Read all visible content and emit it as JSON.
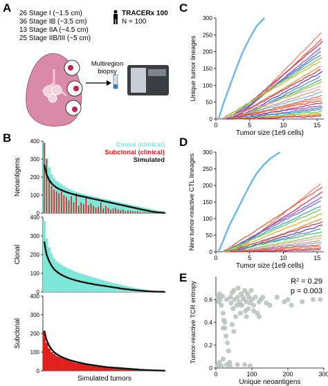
{
  "panel_a": {
    "letter": "A",
    "stages": [
      "26 Stage I (~1.5 cm)",
      "36 Stage IB (~3.5 cm)",
      "13 Stage IIA (~4.5 cm)",
      "25 Stage IIB/III (~5 cm)"
    ],
    "cohort_title": "TRACERx 100",
    "cohort_n": "N = 100",
    "biopsy_label_1": "Multiregion",
    "biopsy_label_2": "biopsy"
  },
  "colors": {
    "clonal": "#7ee8d8",
    "subclonal": "#e0201c",
    "simulated": "#111111",
    "scatter": "#b7c1bc",
    "highlight_line": "#69b8e8"
  },
  "chart_data": [
    {
      "panel": "B",
      "type": "bar",
      "ylabel": "Neoantigens",
      "ylim": [
        0,
        400
      ],
      "yticks": [
        0,
        100,
        200,
        300,
        400
      ],
      "legend": [
        "Clonal (clinical)",
        "Subclonal (clinical)",
        "Simulated"
      ],
      "legend_placement": "top-right",
      "series": [
        {
          "name": "Clonal (clinical)",
          "values": [
            395,
            305,
            255,
            215,
            195,
            180,
            170,
            160,
            150,
            142,
            135,
            128,
            122,
            118,
            114,
            110,
            106,
            102,
            98,
            95,
            92,
            89,
            86,
            83,
            80,
            77,
            74,
            71,
            68,
            65,
            62,
            59,
            56,
            53,
            50,
            47,
            44,
            41,
            38,
            35,
            32,
            29,
            26,
            23,
            20,
            17,
            14,
            11,
            8,
            5
          ]
        },
        {
          "name": "Subclonal (clinical)",
          "values": [
            390,
            300,
            180,
            150,
            130,
            120,
            110,
            120,
            100,
            90,
            70,
            95,
            60,
            110,
            40,
            60,
            50,
            90,
            45,
            55,
            40,
            30,
            35,
            60,
            25,
            40,
            30,
            20,
            25,
            30,
            20,
            15,
            20,
            10,
            15,
            12,
            10,
            8,
            10,
            6,
            5,
            6,
            4,
            3,
            3,
            2,
            2,
            1,
            1,
            1
          ]
        },
        {
          "name": "Simulated",
          "values": [
            270,
            215,
            185,
            165,
            152,
            142,
            134,
            128,
            122,
            117,
            112,
            108,
            104,
            100,
            97,
            94,
            91,
            88,
            85,
            82,
            79,
            76,
            73,
            70,
            67,
            64,
            61,
            58,
            55,
            52,
            49,
            46,
            43,
            40,
            37,
            34,
            31,
            28,
            25,
            22,
            19,
            16,
            13,
            10,
            8,
            6,
            4,
            3,
            2,
            1
          ]
        }
      ]
    },
    {
      "panel": "B",
      "type": "bar",
      "ylabel": "Clonal",
      "ylim": [
        0,
        400
      ],
      "yticks": [
        0,
        100,
        200,
        300,
        400
      ],
      "series": [
        {
          "name": "Clonal (clinical)",
          "values": [
            380,
            285,
            240,
            205,
            180,
            165,
            155,
            145,
            138,
            130,
            124,
            118,
            112,
            107,
            102,
            98,
            94,
            90,
            86,
            82,
            78,
            74,
            70,
            66,
            62,
            58,
            55,
            52,
            48,
            45,
            42,
            39,
            36,
            33,
            30,
            27,
            24,
            21,
            18,
            16,
            14,
            12,
            10,
            8,
            6,
            5,
            4,
            3,
            2,
            1
          ]
        },
        {
          "name": "Simulated",
          "values": [
            270,
            200,
            165,
            140,
            122,
            110,
            100,
            92,
            85,
            79,
            74,
            69,
            65,
            61,
            58,
            55,
            52,
            49,
            46,
            44,
            41,
            39,
            37,
            35,
            33,
            31,
            29,
            27,
            25,
            23,
            21,
            19,
            17,
            15,
            14,
            12,
            11,
            9,
            8,
            7,
            6,
            5,
            4,
            3,
            2,
            2,
            1,
            1,
            1,
            0
          ]
        }
      ]
    },
    {
      "panel": "B",
      "type": "bar",
      "ylabel": "Subclonal",
      "xlabel": "Simulated tumors",
      "ylim": [
        0,
        400
      ],
      "yticks": [
        0,
        100,
        200,
        300,
        400
      ],
      "series": [
        {
          "name": "Subclonal (clinical)",
          "values": [
            210,
            150,
            120,
            100,
            90,
            80,
            75,
            70,
            65,
            60,
            55,
            50,
            46,
            42,
            40,
            38,
            36,
            34,
            32,
            30,
            28,
            26,
            24,
            22,
            20,
            18,
            17,
            16,
            15,
            14,
            13,
            12,
            11,
            10,
            9,
            8,
            7,
            6,
            5,
            5,
            4,
            4,
            3,
            3,
            2,
            2,
            1,
            1,
            1,
            0
          ]
        },
        {
          "name": "Simulated",
          "values": [
            215,
            165,
            135,
            115,
            100,
            90,
            82,
            75,
            69,
            64,
            59,
            55,
            51,
            48,
            45,
            42,
            39,
            36,
            34,
            32,
            30,
            28,
            26,
            24,
            22,
            20,
            19,
            18,
            17,
            16,
            15,
            14,
            13,
            12,
            11,
            10,
            9,
            8,
            7,
            6,
            5,
            4,
            4,
            3,
            3,
            2,
            2,
            1,
            1,
            0
          ]
        }
      ]
    },
    {
      "panel": "C",
      "type": "line",
      "ylabel": "Unique tumor lineages",
      "xlabel": "Tumor size (1e9 cells)",
      "xlim": [
        0,
        16
      ],
      "ylim": [
        0,
        300
      ],
      "xticks": [
        0,
        5,
        10,
        15
      ],
      "yticks": [
        0,
        50,
        100,
        150,
        200,
        250,
        300
      ],
      "highlight": {
        "x": [
          0.4,
          1,
          2,
          3,
          4,
          5,
          6,
          7.2
        ],
        "y": [
          0,
          40,
          95,
          150,
          200,
          240,
          275,
          300
        ]
      },
      "endpoints": [
        260,
        240,
        230,
        215,
        205,
        195,
        185,
        175,
        160,
        150,
        140,
        130,
        120,
        110,
        100,
        90,
        80,
        70,
        62,
        55,
        48,
        40,
        34,
        28,
        22,
        16,
        12,
        8
      ]
    },
    {
      "panel": "D",
      "type": "line",
      "ylabel": "New tumor-reactive CTL lineages",
      "xlabel": "Tumor size (1e9 cells)",
      "xlim": [
        0,
        16
      ],
      "ylim": [
        0,
        300
      ],
      "xticks": [
        0,
        5,
        10,
        15
      ],
      "yticks": [
        0,
        50,
        100,
        150,
        200,
        250,
        300
      ],
      "highlight": {
        "x": [
          0.4,
          1,
          2,
          3,
          4,
          5,
          6,
          7,
          8,
          9.5
        ],
        "y": [
          0,
          30,
          80,
          120,
          160,
          200,
          235,
          260,
          280,
          300
        ]
      },
      "endpoints": [
        210,
        195,
        180,
        165,
        155,
        140,
        130,
        115,
        100,
        90,
        80,
        70,
        60,
        50,
        42,
        35,
        28,
        22,
        16,
        10,
        6
      ]
    },
    {
      "panel": "E",
      "type": "scatter",
      "ylabel": "Tumor-reactive TCR entropy",
      "xlabel": "Unique neoantigens",
      "xlim": [
        0,
        300
      ],
      "ylim": [
        0,
        0.8
      ],
      "xticks": [
        0,
        100,
        200,
        300
      ],
      "r2_label": "R",
      "r2_sup": "2",
      "r2_value": " = 0.29",
      "p_label": "p = 0.003",
      "points": [
        [
          5,
          0.62
        ],
        [
          8,
          0.58
        ],
        [
          10,
          0.65
        ],
        [
          12,
          0.6
        ],
        [
          15,
          0.55
        ],
        [
          18,
          0.63
        ],
        [
          20,
          0.48
        ],
        [
          22,
          0.42
        ],
        [
          25,
          0.35
        ],
        [
          28,
          0.28
        ],
        [
          30,
          0.6
        ],
        [
          32,
          0.22
        ],
        [
          35,
          0.15
        ],
        [
          38,
          0.05
        ],
        [
          40,
          0.62
        ],
        [
          42,
          0.57
        ],
        [
          45,
          0.66
        ],
        [
          48,
          0.52
        ],
        [
          50,
          0.68
        ],
        [
          52,
          0.6
        ],
        [
          55,
          0.45
        ],
        [
          58,
          0.55
        ],
        [
          60,
          0.62
        ],
        [
          62,
          0.7
        ],
        [
          65,
          0.58
        ],
        [
          68,
          0.48
        ],
        [
          70,
          0.65
        ],
        [
          72,
          0.55
        ],
        [
          75,
          0.62
        ],
        [
          78,
          0.6
        ],
        [
          80,
          0.68
        ],
        [
          82,
          0.5
        ],
        [
          85,
          0.58
        ],
        [
          88,
          0.65
        ],
        [
          90,
          0.52
        ],
        [
          92,
          0.62
        ],
        [
          95,
          0.57
        ],
        [
          98,
          0.68
        ],
        [
          100,
          0.6
        ],
        [
          105,
          0.55
        ],
        [
          110,
          0.62
        ],
        [
          115,
          0.48
        ],
        [
          120,
          0.58
        ],
        [
          125,
          0.6
        ],
        [
          130,
          0.62
        ],
        [
          140,
          0.57
        ],
        [
          150,
          0.55
        ],
        [
          170,
          0.62
        ],
        [
          190,
          0.58
        ],
        [
          200,
          0.6
        ],
        [
          210,
          0.55
        ],
        [
          240,
          0.58
        ],
        [
          270,
          0.6
        ],
        [
          290,
          0.6
        ],
        [
          5,
          0.02
        ],
        [
          10,
          0.05
        ],
        [
          15,
          0.02
        ],
        [
          20,
          0.08
        ],
        [
          30,
          0.03
        ],
        [
          40,
          0.02
        ],
        [
          60,
          0.03
        ],
        [
          80,
          0.03
        ],
        [
          95,
          0.02
        ],
        [
          20,
          0.35
        ],
        [
          25,
          0.4
        ],
        [
          45,
          0.38
        ],
        [
          50,
          0.32
        ],
        [
          70,
          0.55
        ],
        [
          85,
          0.45
        ],
        [
          105,
          0.5
        ],
        [
          120,
          0.45
        ]
      ]
    }
  ],
  "x_tick_labels": {
    "c": [
      "0",
      "5",
      "10",
      "15"
    ],
    "d": [
      "0",
      "5",
      "10",
      "15"
    ],
    "e": [
      "0",
      "100",
      "200",
      "300"
    ]
  },
  "y_tick_labels": {
    "b": [
      "0",
      "100",
      "200",
      "300",
      "400"
    ],
    "cd": [
      "0",
      "50",
      "100",
      "150",
      "200",
      "250",
      "300"
    ],
    "e": [
      "0",
      "0.2",
      "0.4",
      "0.6"
    ]
  }
}
